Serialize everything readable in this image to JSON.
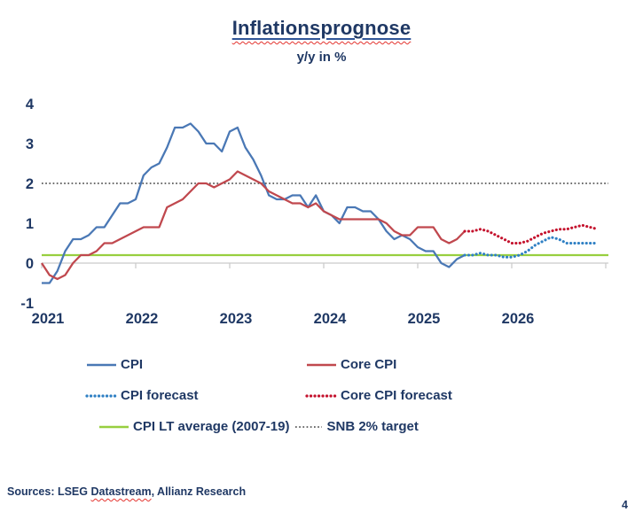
{
  "header": {
    "title": "Inflationsprognose",
    "subtitle": "y/y in %"
  },
  "colors": {
    "text_navy": "#1f3864",
    "axis_gray": "#c9c9c9",
    "squiggle_red": "#e4342f",
    "cpi_blue": "#4a78b5",
    "core_cpi_red": "#c0484e",
    "cpi_forecast_blue": "#2f80c4",
    "core_cpi_forecast_red": "#c4122d",
    "lt_average_green": "#97cf3f",
    "snb_target_gray": "#3f3f3f"
  },
  "chart_data": {
    "type": "line",
    "title": "Inflationsprognose",
    "subtitle": "y/y in %",
    "x_start": "2021-01",
    "x_end": "2026-12",
    "xticks": [
      "2021",
      "2022",
      "2023",
      "2024",
      "2025",
      "2026"
    ],
    "yticks": [
      4,
      3,
      2,
      1,
      0,
      -1
    ],
    "ylim": [
      -1,
      4.3
    ],
    "grid": false,
    "legend_position": "bottom",
    "series": [
      {
        "name": "CPI",
        "style": "solid",
        "color": "#4a78b5",
        "start_index": 0,
        "values": [
          -0.5,
          -0.5,
          -0.2,
          0.3,
          0.6,
          0.6,
          0.7,
          0.9,
          0.9,
          1.2,
          1.5,
          1.5,
          1.6,
          2.2,
          2.4,
          2.5,
          2.9,
          3.4,
          3.4,
          3.5,
          3.3,
          3.0,
          3.0,
          2.8,
          3.3,
          3.4,
          2.9,
          2.6,
          2.2,
          1.7,
          1.6,
          1.6,
          1.7,
          1.7,
          1.4,
          1.7,
          1.3,
          1.2,
          1.0,
          1.4,
          1.4,
          1.3,
          1.3,
          1.1,
          0.8,
          0.6,
          0.7,
          0.6,
          0.4,
          0.3,
          0.3,
          0.0,
          -0.1,
          0.1,
          0.2
        ]
      },
      {
        "name": "Core CPI",
        "style": "solid",
        "color": "#c0484e",
        "start_index": 0,
        "values": [
          0.0,
          -0.3,
          -0.4,
          -0.3,
          0.0,
          0.2,
          0.2,
          0.3,
          0.5,
          0.5,
          0.6,
          0.7,
          0.8,
          0.9,
          0.9,
          0.9,
          1.4,
          1.5,
          1.6,
          1.8,
          2.0,
          2.0,
          1.9,
          2.0,
          2.1,
          2.3,
          2.2,
          2.1,
          2.0,
          1.8,
          1.7,
          1.6,
          1.5,
          1.5,
          1.4,
          1.5,
          1.3,
          1.2,
          1.1,
          1.1,
          1.1,
          1.1,
          1.1,
          1.1,
          1.0,
          0.8,
          0.7,
          0.7,
          0.9,
          0.9,
          0.9,
          0.6,
          0.5,
          0.6,
          0.8
        ]
      },
      {
        "name": "CPI forecast",
        "style": "dotted",
        "color": "#2f80c4",
        "start_index": 54,
        "values": [
          0.2,
          0.2,
          0.25,
          0.2,
          0.2,
          0.15,
          0.15,
          0.2,
          0.3,
          0.45,
          0.55,
          0.65,
          0.6,
          0.5,
          0.5,
          0.5,
          0.5,
          0.5
        ]
      },
      {
        "name": "Core CPI forecast",
        "style": "dotted",
        "color": "#c4122d",
        "start_index": 54,
        "values": [
          0.8,
          0.8,
          0.85,
          0.8,
          0.7,
          0.6,
          0.5,
          0.5,
          0.55,
          0.65,
          0.75,
          0.8,
          0.85,
          0.85,
          0.9,
          0.95,
          0.9,
          0.85
        ]
      },
      {
        "name": "CPI LT average (2007-19)",
        "style": "solid",
        "color": "#97cf3f",
        "constant": 0.2
      },
      {
        "name": "SNB 2% target",
        "style": "dotted-fine",
        "color": "#3f3f3f",
        "constant": 2.0
      }
    ]
  },
  "legend": {
    "items": [
      {
        "label": "CPI",
        "color": "#4a78b5",
        "style": "solid"
      },
      {
        "label": "Core CPI",
        "color": "#c0484e",
        "style": "solid"
      },
      {
        "label": "CPI forecast",
        "color": "#2f80c4",
        "style": "dotted"
      },
      {
        "label": "Core CPI forecast",
        "color": "#c4122d",
        "style": "dotted"
      },
      {
        "label": "CPI LT average (2007-19)",
        "color": "#97cf3f",
        "style": "solid"
      },
      {
        "label": "SNB 2% target",
        "color": "#3f3f3f",
        "style": "dotted-fine"
      }
    ]
  },
  "footer": {
    "sources_prefix": "Sources: LSEG ",
    "sources_word_underlined": "Datastream",
    "sources_suffix": ", Allianz Research",
    "page_number": "4"
  }
}
